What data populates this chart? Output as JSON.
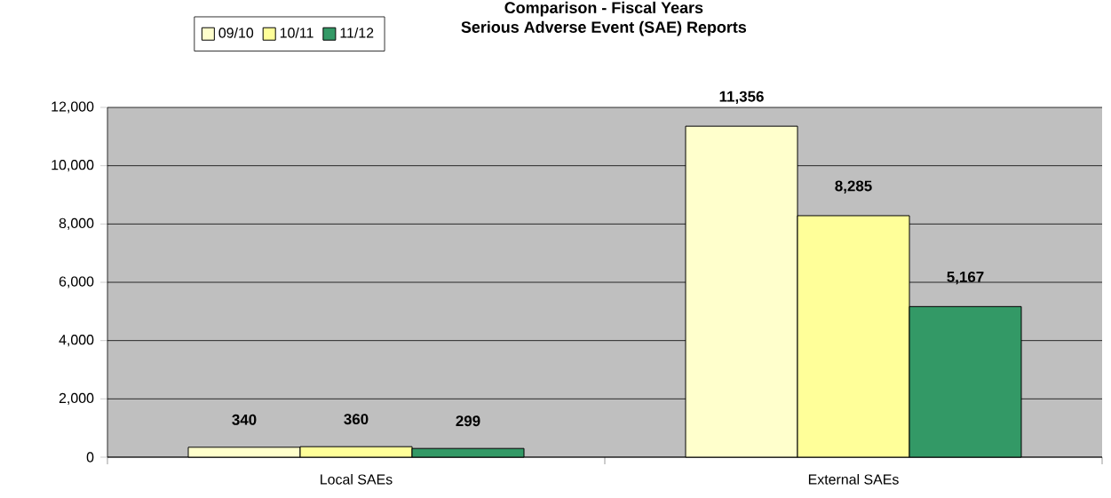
{
  "chart_data": {
    "type": "bar",
    "title": "Comparison -  Fiscal Years",
    "subtitle": "Serious Adverse Event (SAE) Reports",
    "categories": [
      "Local SAEs",
      "External SAEs"
    ],
    "series": [
      {
        "name": "09/10",
        "color": "#ffffcc",
        "values": [
          340,
          11356
        ],
        "value_labels": [
          "340",
          "11,356"
        ]
      },
      {
        "name": "10/11",
        "color": "#ffff99",
        "values": [
          360,
          8285
        ],
        "value_labels": [
          "360",
          "8,285"
        ]
      },
      {
        "name": "11/12",
        "color": "#339966",
        "values": [
          299,
          5167
        ],
        "value_labels": [
          "299",
          "5,167"
        ]
      }
    ],
    "ylim": [
      0,
      12000
    ],
    "yticks": [
      0,
      {
        "value": 2000,
        "label": "2,000"
      },
      {
        "value": 4000,
        "label": "4,000"
      },
      {
        "value": 6000,
        "label": "6,000"
      },
      {
        "value": 8000,
        "label": "8,000"
      },
      {
        "value": 10000,
        "label": "10,000"
      },
      {
        "value": 12000,
        "label": "12,000"
      }
    ],
    "grid": "y",
    "legend": "top left"
  }
}
